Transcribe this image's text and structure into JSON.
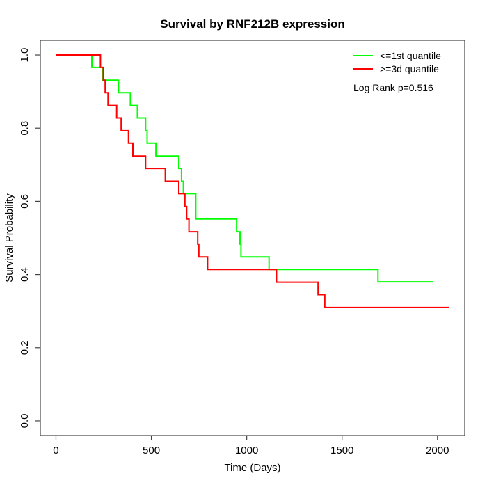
{
  "chart_data": {
    "type": "line",
    "subtype": "kaplan-meier-step",
    "title": "Survival by RNF212B expression",
    "xlabel": "Time (Days)",
    "ylabel": "Survival Probability",
    "annotation": "Log Rank p=0.516",
    "grid": false,
    "legend_position": "top-right",
    "x_range": [
      -82,
      2143
    ],
    "y_range": [
      -0.04,
      1.04
    ],
    "x_ticks": [
      0,
      500,
      1000,
      1500,
      2000
    ],
    "x_tick_labels": [
      "0",
      "500",
      "1000",
      "1500",
      "2000"
    ],
    "y_ticks": [
      0,
      0.2,
      0.4,
      0.6,
      0.8,
      1.0
    ],
    "y_tick_labels": [
      "0.0",
      "0.2",
      "0.4",
      "0.6",
      "0.8",
      "1.0"
    ],
    "line_width": 2,
    "series": [
      {
        "name": "<=1st quantile",
        "color": "#00FF00",
        "end_time": 1976,
        "points": [
          [
            0,
            1.0
          ],
          [
            188,
            0.966
          ],
          [
            244,
            0.931
          ],
          [
            328,
            0.897
          ],
          [
            390,
            0.862
          ],
          [
            427,
            0.828
          ],
          [
            470,
            0.793
          ],
          [
            478,
            0.759
          ],
          [
            524,
            0.724
          ],
          [
            644,
            0.69
          ],
          [
            658,
            0.655
          ],
          [
            668,
            0.621
          ],
          [
            733,
            0.552
          ],
          [
            947,
            0.517
          ],
          [
            965,
            0.483
          ],
          [
            970,
            0.448
          ],
          [
            1117,
            0.414
          ],
          [
            1688,
            0.38
          ]
        ]
      },
      {
        "name": ">=3d quantile",
        "color": "#FF0000",
        "end_time": 2061,
        "points": [
          [
            0,
            1.0
          ],
          [
            233,
            0.966
          ],
          [
            248,
            0.931
          ],
          [
            258,
            0.897
          ],
          [
            273,
            0.862
          ],
          [
            318,
            0.828
          ],
          [
            342,
            0.793
          ],
          [
            380,
            0.759
          ],
          [
            403,
            0.724
          ],
          [
            470,
            0.69
          ],
          [
            573,
            0.655
          ],
          [
            644,
            0.621
          ],
          [
            676,
            0.586
          ],
          [
            685,
            0.552
          ],
          [
            697,
            0.517
          ],
          [
            743,
            0.483
          ],
          [
            749,
            0.448
          ],
          [
            795,
            0.414
          ],
          [
            1156,
            0.379
          ],
          [
            1374,
            0.345
          ],
          [
            1409,
            0.31
          ]
        ]
      }
    ]
  }
}
